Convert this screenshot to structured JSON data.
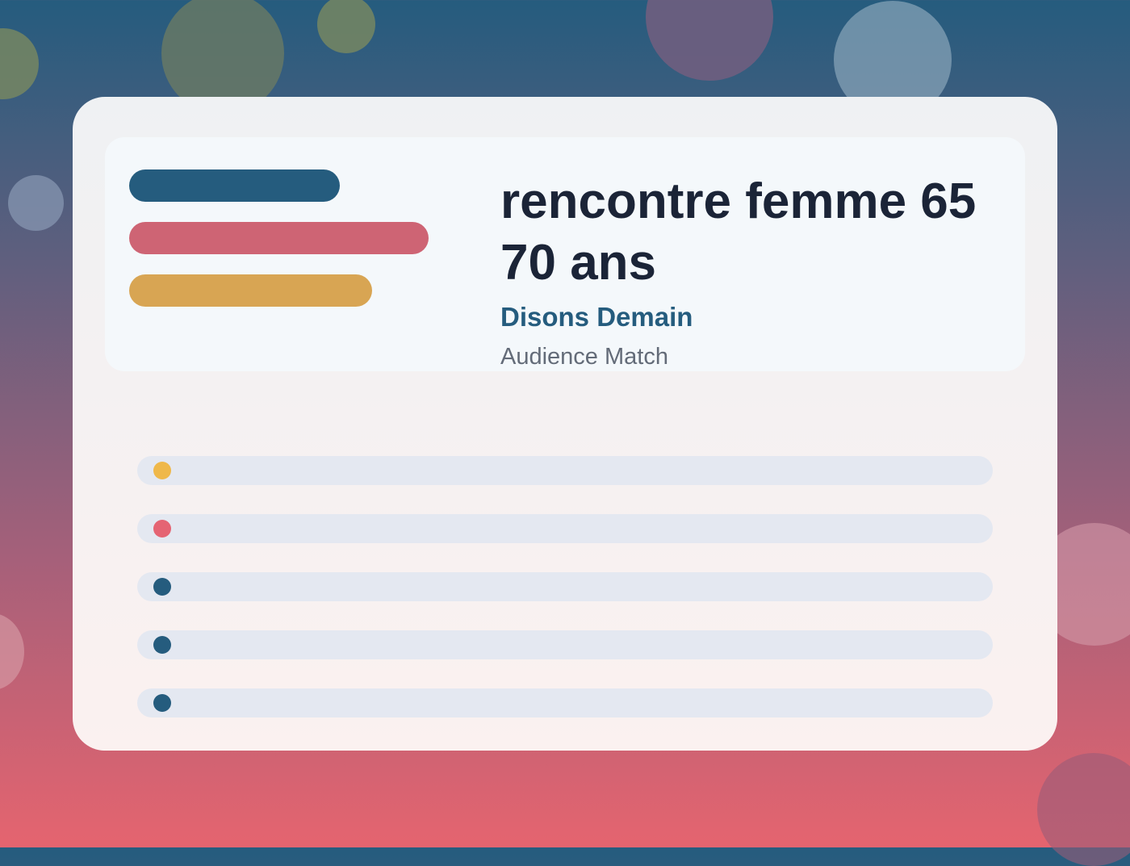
{
  "header": {
    "title": "rencontre femme 65 70 ans",
    "brand": "Disons Demain",
    "tagline": "Audience Match"
  }
}
